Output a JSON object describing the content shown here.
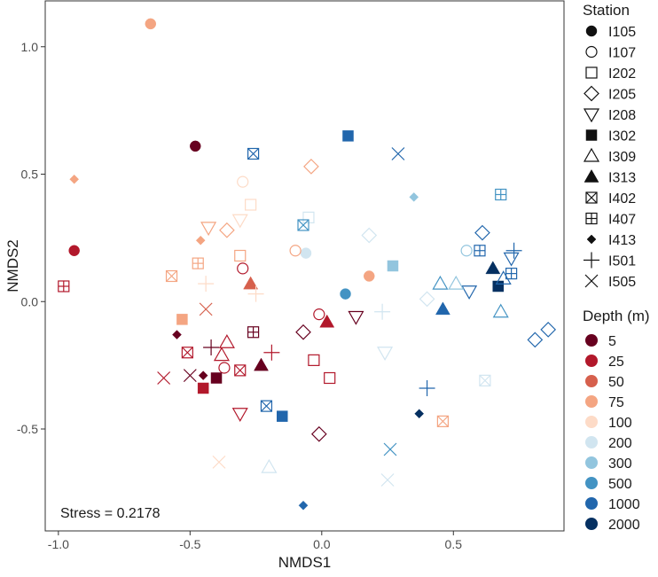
{
  "chart_data": {
    "type": "scatter",
    "xlabel": "NMDS1",
    "ylabel": "NMDS2",
    "xlim": [
      -1.05,
      0.92
    ],
    "ylim": [
      -0.9,
      1.18
    ],
    "x_ticks": [
      -1.0,
      -0.5,
      0.0,
      0.5
    ],
    "x_tick_labels": [
      "-1.0",
      "-0.5",
      "0.0",
      "0.5"
    ],
    "y_ticks": [
      -0.5,
      0.0,
      0.5,
      1.0
    ],
    "y_tick_labels": [
      "-0.5",
      "0.0",
      "0.5",
      "1.0"
    ],
    "annotation": "Stress = 0.2178",
    "station_legend": {
      "title": "Station",
      "items": [
        {
          "label": "I105",
          "shape": "filled-circle"
        },
        {
          "label": "I107",
          "shape": "open-circle"
        },
        {
          "label": "I202",
          "shape": "open-square"
        },
        {
          "label": "I205",
          "shape": "open-diamond"
        },
        {
          "label": "I208",
          "shape": "open-triangle-down"
        },
        {
          "label": "I302",
          "shape": "filled-square"
        },
        {
          "label": "I309",
          "shape": "open-triangle"
        },
        {
          "label": "I313",
          "shape": "filled-triangle"
        },
        {
          "label": "I402",
          "shape": "square-x"
        },
        {
          "label": "I407",
          "shape": "square-plus"
        },
        {
          "label": "I413",
          "shape": "filled-diamond"
        },
        {
          "label": "I501",
          "shape": "plus"
        },
        {
          "label": "I505",
          "shape": "cross"
        }
      ]
    },
    "depth_legend": {
      "title": "Depth (m)",
      "items": [
        {
          "label": "5",
          "color": "#67001f"
        },
        {
          "label": "25",
          "color": "#b2182b"
        },
        {
          "label": "50",
          "color": "#d6604d"
        },
        {
          "label": "75",
          "color": "#f4a582"
        },
        {
          "label": "100",
          "color": "#fddbc7"
        },
        {
          "label": "200",
          "color": "#d1e5f0"
        },
        {
          "label": "300",
          "color": "#92c5de"
        },
        {
          "label": "500",
          "color": "#4393c3"
        },
        {
          "label": "1000",
          "color": "#2166ac"
        },
        {
          "label": "2000",
          "color": "#053061"
        }
      ]
    },
    "points": [
      {
        "x": -0.65,
        "y": 1.09,
        "station": "I105",
        "depth": "75"
      },
      {
        "x": -0.48,
        "y": 0.61,
        "station": "I105",
        "depth": "5"
      },
      {
        "x": -0.94,
        "y": 0.2,
        "station": "I105",
        "depth": "25"
      },
      {
        "x": -0.06,
        "y": 0.19,
        "station": "I105",
        "depth": "200"
      },
      {
        "x": 0.09,
        "y": 0.03,
        "station": "I105",
        "depth": "500"
      },
      {
        "x": 0.18,
        "y": 0.1,
        "station": "I105",
        "depth": "75"
      },
      {
        "x": -0.3,
        "y": 0.47,
        "station": "I107",
        "depth": "100"
      },
      {
        "x": -0.3,
        "y": 0.13,
        "station": "I107",
        "depth": "25"
      },
      {
        "x": -0.1,
        "y": 0.2,
        "station": "I107",
        "depth": "75"
      },
      {
        "x": -0.01,
        "y": -0.05,
        "station": "I107",
        "depth": "25"
      },
      {
        "x": -0.37,
        "y": -0.26,
        "station": "I107",
        "depth": "25"
      },
      {
        "x": 0.55,
        "y": 0.2,
        "station": "I107",
        "depth": "300"
      },
      {
        "x": -0.27,
        "y": 0.38,
        "station": "I202",
        "depth": "100"
      },
      {
        "x": -0.31,
        "y": 0.18,
        "station": "I202",
        "depth": "75"
      },
      {
        "x": -0.05,
        "y": 0.33,
        "station": "I202",
        "depth": "200"
      },
      {
        "x": -0.03,
        "y": -0.23,
        "station": "I202",
        "depth": "25"
      },
      {
        "x": 0.03,
        "y": -0.3,
        "station": "I202",
        "depth": "25"
      },
      {
        "x": -0.04,
        "y": 0.53,
        "station": "I205",
        "depth": "75"
      },
      {
        "x": -0.36,
        "y": 0.28,
        "station": "I205",
        "depth": "75"
      },
      {
        "x": 0.18,
        "y": 0.26,
        "station": "I205",
        "depth": "200"
      },
      {
        "x": 0.4,
        "y": 0.01,
        "station": "I205",
        "depth": "200"
      },
      {
        "x": -0.07,
        "y": -0.12,
        "station": "I205",
        "depth": "5"
      },
      {
        "x": -0.01,
        "y": -0.52,
        "station": "I205",
        "depth": "5"
      },
      {
        "x": 0.61,
        "y": 0.27,
        "station": "I205",
        "depth": "1000"
      },
      {
        "x": 0.81,
        "y": -0.15,
        "station": "I205",
        "depth": "1000"
      },
      {
        "x": 0.86,
        "y": -0.11,
        "station": "I205",
        "depth": "1000"
      },
      {
        "x": -0.43,
        "y": 0.29,
        "station": "I208",
        "depth": "75"
      },
      {
        "x": -0.31,
        "y": 0.32,
        "station": "I208",
        "depth": "100"
      },
      {
        "x": 0.13,
        "y": -0.06,
        "station": "I208",
        "depth": "5"
      },
      {
        "x": 0.24,
        "y": -0.2,
        "station": "I208",
        "depth": "200"
      },
      {
        "x": -0.31,
        "y": -0.44,
        "station": "I208",
        "depth": "25"
      },
      {
        "x": 0.56,
        "y": 0.04,
        "station": "I208",
        "depth": "1000"
      },
      {
        "x": 0.72,
        "y": 0.17,
        "station": "I208",
        "depth": "1000"
      },
      {
        "x": 0.1,
        "y": 0.65,
        "station": "I302",
        "depth": "1000"
      },
      {
        "x": 0.27,
        "y": 0.14,
        "station": "I302",
        "depth": "300"
      },
      {
        "x": -0.53,
        "y": -0.07,
        "station": "I302",
        "depth": "75"
      },
      {
        "x": -0.4,
        "y": -0.3,
        "station": "I302",
        "depth": "5"
      },
      {
        "x": -0.45,
        "y": -0.34,
        "station": "I302",
        "depth": "25"
      },
      {
        "x": -0.15,
        "y": -0.45,
        "station": "I302",
        "depth": "1000"
      },
      {
        "x": 0.67,
        "y": 0.06,
        "station": "I302",
        "depth": "2000"
      },
      {
        "x": -0.36,
        "y": -0.16,
        "station": "I309",
        "depth": "25"
      },
      {
        "x": -0.38,
        "y": -0.21,
        "station": "I309",
        "depth": "25"
      },
      {
        "x": -0.2,
        "y": -0.65,
        "station": "I309",
        "depth": "200"
      },
      {
        "x": 0.45,
        "y": 0.07,
        "station": "I309",
        "depth": "500"
      },
      {
        "x": 0.51,
        "y": 0.07,
        "station": "I309",
        "depth": "300"
      },
      {
        "x": 0.68,
        "y": -0.04,
        "station": "I309",
        "depth": "500"
      },
      {
        "x": 0.69,
        "y": 0.09,
        "station": "I309",
        "depth": "1000"
      },
      {
        "x": -0.27,
        "y": 0.07,
        "station": "I313",
        "depth": "50"
      },
      {
        "x": 0.02,
        "y": -0.08,
        "station": "I313",
        "depth": "25"
      },
      {
        "x": 0.46,
        "y": -0.03,
        "station": "I313",
        "depth": "1000"
      },
      {
        "x": -0.23,
        "y": -0.25,
        "station": "I313",
        "depth": "5"
      },
      {
        "x": 0.65,
        "y": 0.13,
        "station": "I313",
        "depth": "2000"
      },
      {
        "x": -0.26,
        "y": 0.58,
        "station": "I402",
        "depth": "1000"
      },
      {
        "x": -0.07,
        "y": 0.3,
        "station": "I402",
        "depth": "500"
      },
      {
        "x": -0.57,
        "y": 0.1,
        "station": "I402",
        "depth": "75"
      },
      {
        "x": -0.51,
        "y": -0.2,
        "station": "I402",
        "depth": "25"
      },
      {
        "x": -0.31,
        "y": -0.27,
        "station": "I402",
        "depth": "25"
      },
      {
        "x": -0.21,
        "y": -0.41,
        "station": "I402",
        "depth": "1000"
      },
      {
        "x": 0.46,
        "y": -0.47,
        "station": "I402",
        "depth": "75"
      },
      {
        "x": 0.62,
        "y": -0.31,
        "station": "I402",
        "depth": "200"
      },
      {
        "x": -0.98,
        "y": 0.06,
        "station": "I407",
        "depth": "25"
      },
      {
        "x": -0.47,
        "y": 0.15,
        "station": "I407",
        "depth": "75"
      },
      {
        "x": -0.26,
        "y": -0.12,
        "station": "I407",
        "depth": "5"
      },
      {
        "x": 0.6,
        "y": 0.2,
        "station": "I407",
        "depth": "1000"
      },
      {
        "x": 0.68,
        "y": 0.42,
        "station": "I407",
        "depth": "500"
      },
      {
        "x": 0.72,
        "y": 0.11,
        "station": "I407",
        "depth": "1000"
      },
      {
        "x": -0.94,
        "y": 0.48,
        "station": "I413",
        "depth": "75"
      },
      {
        "x": -0.46,
        "y": 0.24,
        "station": "I413",
        "depth": "75"
      },
      {
        "x": -0.55,
        "y": -0.13,
        "station": "I413",
        "depth": "5"
      },
      {
        "x": -0.45,
        "y": -0.29,
        "station": "I413",
        "depth": "5"
      },
      {
        "x": 0.35,
        "y": 0.41,
        "station": "I413",
        "depth": "300"
      },
      {
        "x": 0.37,
        "y": -0.44,
        "station": "I413",
        "depth": "2000"
      },
      {
        "x": -0.07,
        "y": -0.8,
        "station": "I413",
        "depth": "1000"
      },
      {
        "x": -0.44,
        "y": 0.07,
        "station": "I501",
        "depth": "100"
      },
      {
        "x": -0.25,
        "y": 0.03,
        "station": "I501",
        "depth": "100"
      },
      {
        "x": -0.42,
        "y": -0.18,
        "station": "I501",
        "depth": "5"
      },
      {
        "x": -0.19,
        "y": -0.2,
        "station": "I501",
        "depth": "25"
      },
      {
        "x": 0.23,
        "y": -0.04,
        "station": "I501",
        "depth": "200"
      },
      {
        "x": 0.4,
        "y": -0.34,
        "station": "I501",
        "depth": "1000"
      },
      {
        "x": 0.73,
        "y": 0.2,
        "station": "I501",
        "depth": "1000"
      },
      {
        "x": 0.29,
        "y": 0.58,
        "station": "I505",
        "depth": "1000"
      },
      {
        "x": -0.44,
        "y": -0.03,
        "station": "I505",
        "depth": "50"
      },
      {
        "x": -0.6,
        "y": -0.3,
        "station": "I505",
        "depth": "25"
      },
      {
        "x": -0.5,
        "y": -0.29,
        "station": "I505",
        "depth": "5"
      },
      {
        "x": -0.39,
        "y": -0.63,
        "station": "I505",
        "depth": "100"
      },
      {
        "x": 0.26,
        "y": -0.58,
        "station": "I505",
        "depth": "500"
      },
      {
        "x": 0.25,
        "y": -0.7,
        "station": "I505",
        "depth": "200"
      }
    ]
  }
}
